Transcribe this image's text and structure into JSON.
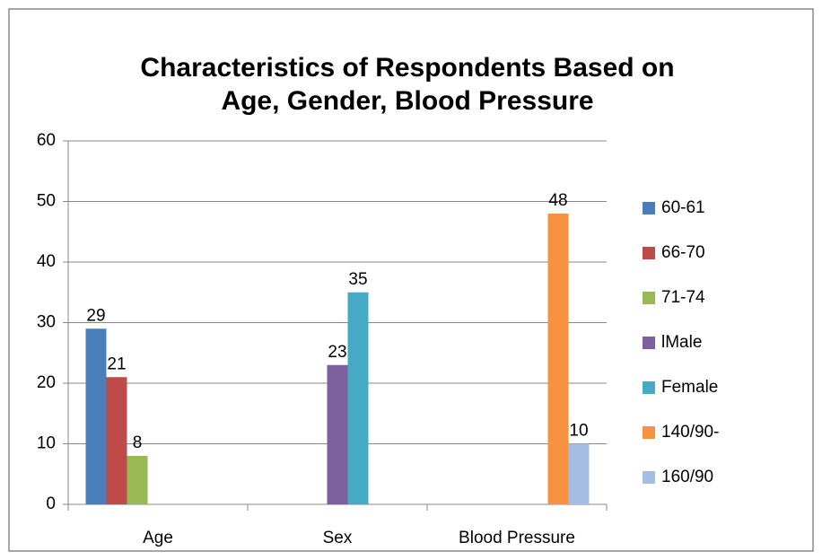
{
  "chart_data": {
    "type": "bar",
    "title": [
      "Characteristics of Respondents Based on",
      "Age, Gender, Blood Pressure"
    ],
    "categories": [
      "Age",
      "Sex",
      "Blood Pressure"
    ],
    "series": [
      {
        "name": "60-61",
        "color": "#4a7ebb",
        "values": [
          29,
          null,
          null
        ]
      },
      {
        "name": "66-70",
        "color": "#be4b48",
        "values": [
          21,
          null,
          null
        ]
      },
      {
        "name": "71-74",
        "color": "#98b954",
        "values": [
          8,
          null,
          null
        ]
      },
      {
        "name": "lMale",
        "color": "#7d60a0",
        "values": [
          null,
          23,
          null
        ]
      },
      {
        "name": "Female",
        "color": "#46aac5",
        "values": [
          null,
          35,
          null
        ]
      },
      {
        "name": "140/90-",
        "color": "#f69240",
        "values": [
          null,
          null,
          48
        ]
      },
      {
        "name": "160/90",
        "color": "#a5bde3",
        "values": [
          null,
          null,
          10
        ]
      }
    ],
    "ylim": [
      0,
      60
    ],
    "yticks": [
      0,
      10,
      20,
      30,
      40,
      50,
      60
    ],
    "grid": true,
    "legend": "right"
  }
}
